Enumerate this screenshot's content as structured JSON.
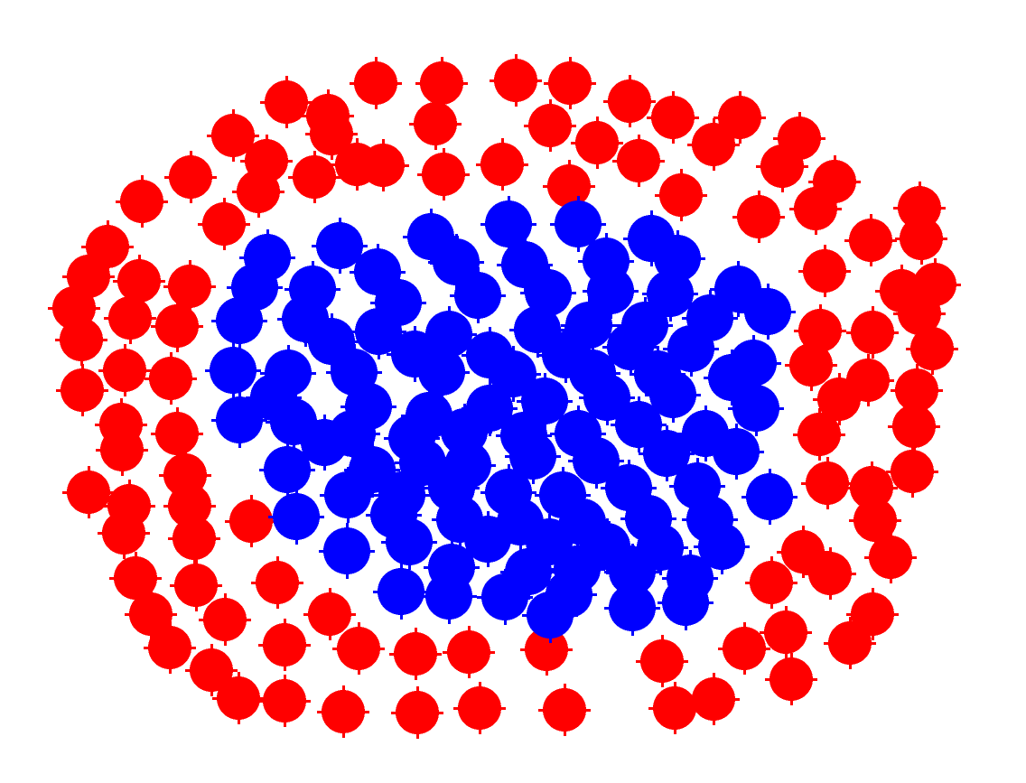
{
  "groups": [
    {
      "name": "outer-ring",
      "color": "#ff0000"
    },
    {
      "name": "inner-cluster",
      "color": "#0000ff"
    }
  ]
}
